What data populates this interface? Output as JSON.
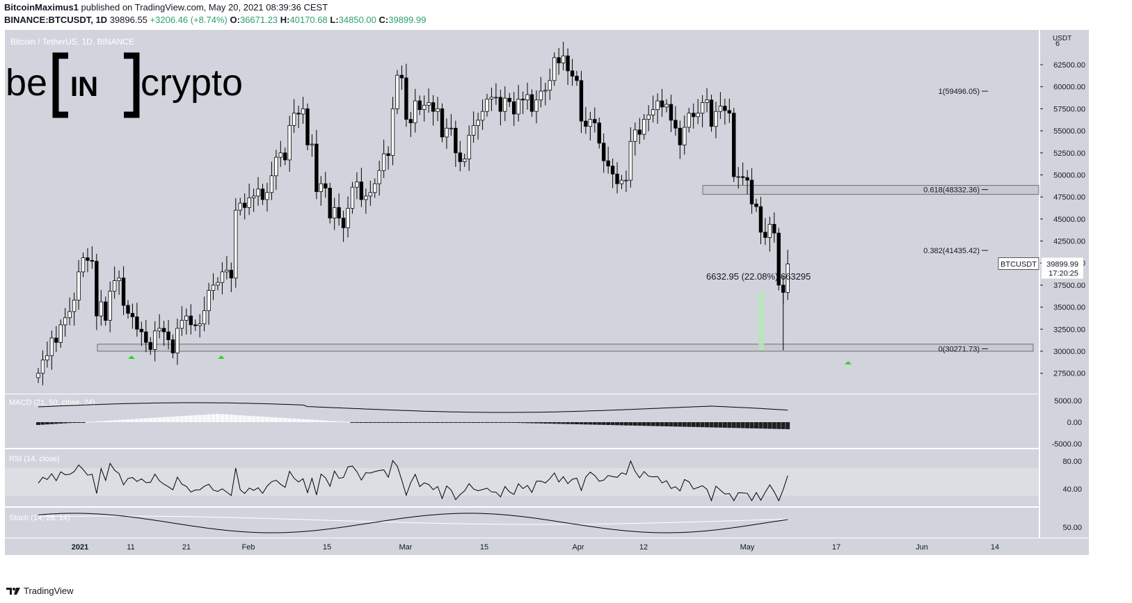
{
  "header": {
    "author": "BitcoinMaximus1",
    "published_text": "published on TradingView.com, May 20, 2021 08:39:36 CEST",
    "symbol": "BINANCE:BTCUSDT, 1D",
    "last": "39896.55",
    "change": "+3206.46 (+8.74%)",
    "o_label": "O:",
    "o": "36671.23",
    "h_label": "H:",
    "h": "40170.68",
    "l_label": "L:",
    "l": "34850.00",
    "c_label": "C:",
    "c": "39899.99"
  },
  "watermark": {
    "pair": "Bitcoin / TetherUS, 1D, BINANCE",
    "brand_left": "be",
    "brand_mid": "IN",
    "brand_right": "crypto"
  },
  "footer": {
    "brand": "TradingView"
  },
  "colors": {
    "panel": "#d1d4dc",
    "candle_up_fill": "#ffffff",
    "candle_down_fill": "#000000",
    "marker": "#2ed52e",
    "measure": "#b5e6b5"
  },
  "chart_data": {
    "type": "candlestick",
    "currency": "USDT",
    "price_axis": {
      "ticks": [
        "62500.00",
        "60000.00",
        "57500.00",
        "55000.00",
        "52500.00",
        "50000.00",
        "47500.00",
        "45000.00",
        "42500.00",
        "40000.00",
        "37500.00",
        "35000.00",
        "32500.00",
        "30000.00",
        "27500.00"
      ],
      "top_partial": "6"
    },
    "x_ticks": [
      "2021",
      "11",
      "21",
      "Feb",
      "15",
      "Mar",
      "15",
      "Apr",
      "12",
      "May",
      "17",
      "Jun",
      "14"
    ],
    "fib_levels": [
      {
        "label": "1(59496.05)",
        "value": 59496.05
      },
      {
        "label": "0.618(48332.36)",
        "value": 48332.36
      },
      {
        "label": "0.382(41435.42)",
        "value": 41435.42
      },
      {
        "label": "0(30271.73)",
        "value": 30271.73
      }
    ],
    "support_zone": [
      30000,
      30800
    ],
    "resistance_zone": [
      47800,
      48800
    ],
    "measurement": {
      "label": "6632.95 (22.08%) 663295"
    },
    "price_label": {
      "symbol": "BTCUSDT",
      "price": "39899.99",
      "countdown": "17:20:25"
    },
    "closes": [
      27500,
      29000,
      29500,
      31500,
      31000,
      33000,
      33800,
      34500,
      35800,
      39000,
      40600,
      40300,
      40200,
      34000,
      35600,
      33500,
      36800,
      38000,
      38300,
      35200,
      34300,
      33900,
      32500,
      32200,
      31000,
      30200,
      32300,
      32600,
      32200,
      31300,
      29800,
      32600,
      33500,
      34000,
      33000,
      32900,
      33100,
      34600,
      36900,
      37500,
      37800,
      39000,
      39200,
      38300,
      46000,
      46800,
      46300,
      47400,
      47600,
      48400,
      47200,
      48000,
      49900,
      52000,
      52500,
      51700,
      55600,
      57000,
      56900,
      57500,
      53400,
      53500,
      48100,
      49000,
      48500,
      45100,
      46300,
      45100,
      44000,
      46200,
      48600,
      49200,
      47200,
      47600,
      48000,
      49000,
      50500,
      52400,
      52200,
      57500,
      61300,
      61000,
      56300,
      55900,
      58400,
      57400,
      57900,
      58200,
      57200,
      57500,
      54300,
      55300,
      55300,
      52500,
      51500,
      51800,
      54500,
      55600,
      56200,
      57200,
      58600,
      58800,
      58800,
      57200,
      58700,
      58300,
      56900,
      58600,
      58500,
      59100,
      57200,
      58500,
      59500,
      59600,
      60700,
      63300,
      62700,
      63500,
      61800,
      61200,
      60700,
      56100,
      55500,
      56300,
      55900,
      53600,
      51600,
      51000,
      50100,
      49000,
      49400,
      49400,
      53800,
      55100,
      54600,
      56300,
      56800,
      57400,
      58400,
      57700,
      58000,
      56200,
      55300,
      53400,
      55400,
      57000,
      56600,
      57000,
      58200,
      58500,
      55500,
      57200,
      57800,
      57300,
      57000,
      49800,
      49800,
      49700,
      49400,
      46700,
      46400,
      43500,
      42900,
      44400,
      43400,
      37500,
      36671.23,
      39899.99
    ],
    "volume_note": "",
    "macd": {
      "label": "MACD (21, 50, close, 24)",
      "ticks": [
        "5000.00",
        "0.00",
        "-5000.00"
      ]
    },
    "rsi": {
      "label": "RSI (14, close)",
      "ticks": [
        "80.00",
        "40.00"
      ]
    },
    "stoch": {
      "label": "Stoch (14, 28, 14)",
      "ticks": [
        "50.00"
      ]
    },
    "markers": 3
  }
}
